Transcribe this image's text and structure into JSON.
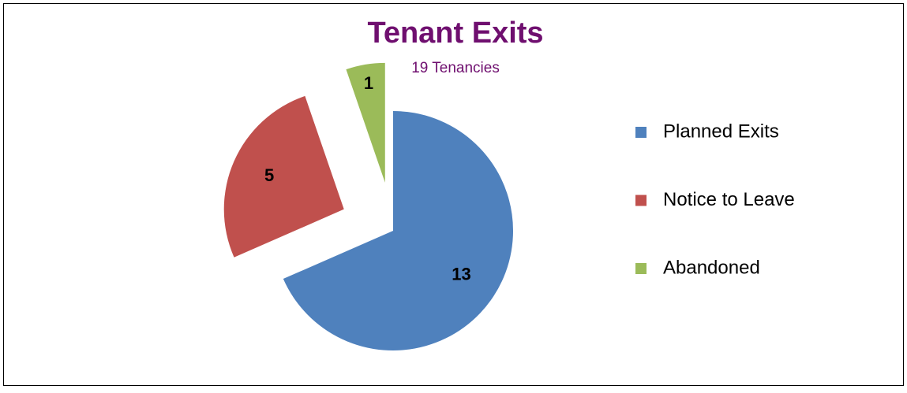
{
  "chart_data": {
    "type": "pie",
    "title": "Tenant Exits",
    "subtitle": "19 Tenancies",
    "categories": [
      "Planned Exits",
      "Notice to Leave",
      "Abandoned"
    ],
    "values": [
      13,
      5,
      1
    ],
    "colors": [
      "#4f81bd",
      "#c0504d",
      "#9bbb59"
    ],
    "legend": "right"
  }
}
